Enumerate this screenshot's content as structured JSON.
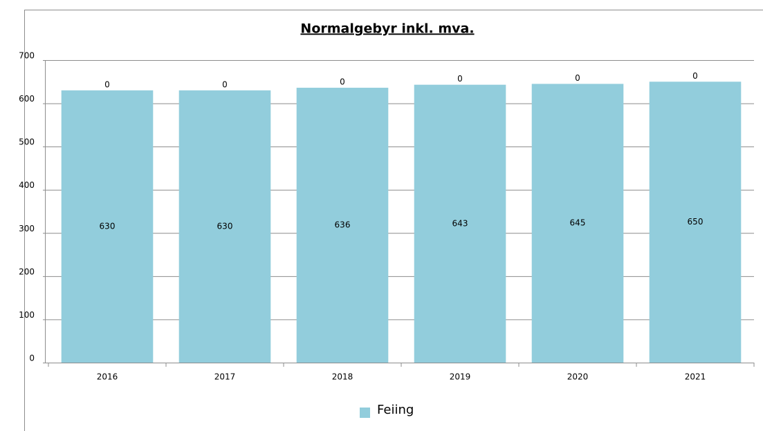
{
  "chart_data": {
    "type": "stacked_bar",
    "title": "Normalgebyr inkl. mva.",
    "categories": [
      "2016",
      "2017",
      "2018",
      "2019",
      "2020",
      "2021"
    ],
    "series": [
      {
        "name": "Feiing",
        "color": "#92cddc",
        "values": [
          630,
          630,
          636,
          643,
          645,
          650
        ]
      },
      {
        "color": "#92cddc",
        "values": [
          0,
          0,
          0,
          0,
          0,
          0
        ]
      }
    ],
    "ylim": [
      0,
      700
    ],
    "yticks": [
      0,
      100,
      200,
      300,
      400,
      500,
      600,
      700
    ],
    "grid": true,
    "legend": "bottom"
  }
}
